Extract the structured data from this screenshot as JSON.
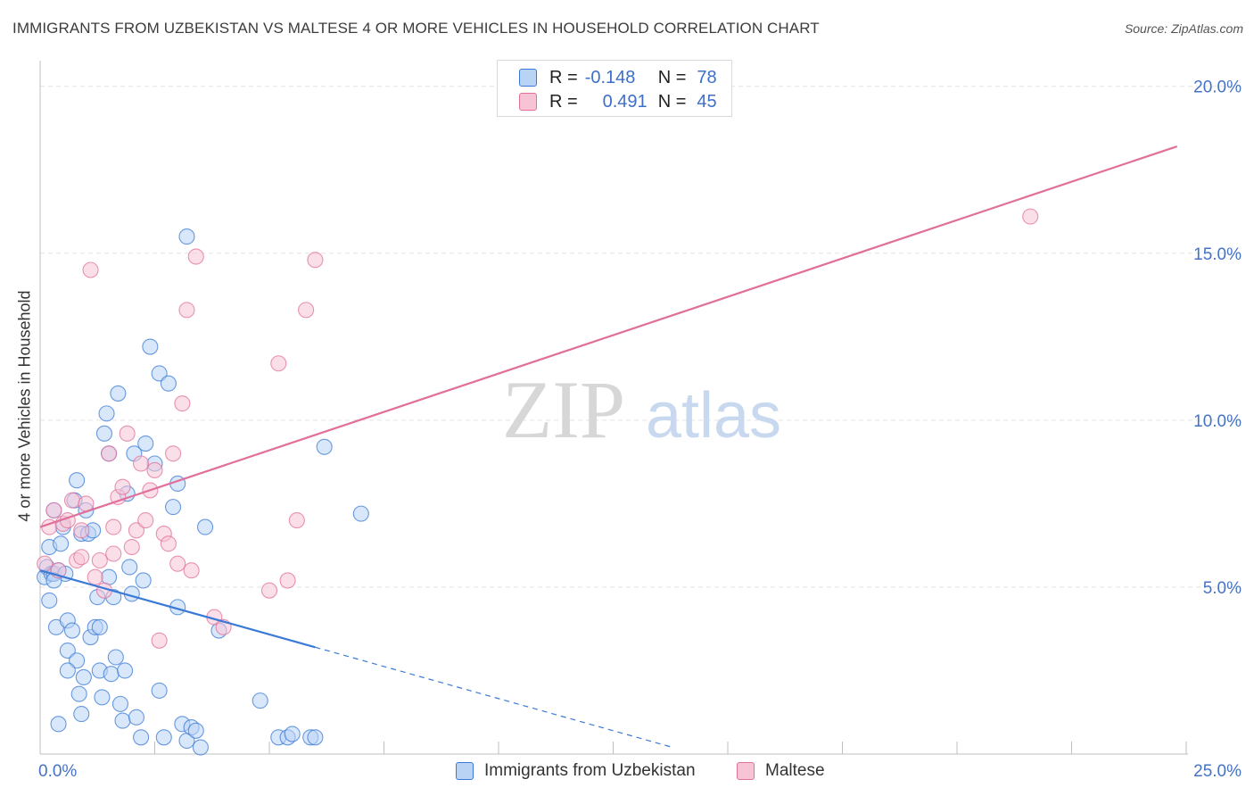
{
  "title": "IMMIGRANTS FROM UZBEKISTAN VS MALTESE 4 OR MORE VEHICLES IN HOUSEHOLD CORRELATION CHART",
  "source": "Source: ZipAtlas.com",
  "watermark": {
    "zip": "ZIP",
    "atlas": "atlas"
  },
  "colors": {
    "blue": "#3a7ad6",
    "blue_fill": "#b9d3f5",
    "pink": "#e0709a",
    "pink_fill": "#f7c4d5",
    "axis_label": "#4472c4"
  },
  "legend": {
    "rows": [
      {
        "r_label": "R =",
        "r_value": "-0.148",
        "n_label": "N =",
        "n_value": "78"
      },
      {
        "r_label": "R =",
        "r_value": "0.491",
        "n_label": "N =",
        "n_value": "45"
      }
    ]
  },
  "bottom_legend": {
    "series1": "Immigrants from Uzbekistan",
    "series2": "Maltese"
  },
  "chart_data": {
    "type": "scatter",
    "xlabel": "",
    "ylabel": "4 or more Vehicles in Household",
    "xlim": [
      0,
      25
    ],
    "ylim": [
      0,
      20.5
    ],
    "x_tick_labels": [
      "0.0%",
      "25.0%"
    ],
    "y_tick_labels": [
      "5.0%",
      "10.0%",
      "15.0%",
      "20.0%"
    ],
    "y_ticks": [
      5,
      10,
      15,
      20
    ],
    "series": [
      {
        "name": "Immigrants from Uzbekistan",
        "color": "#3a7ad6",
        "trend": {
          "x": [
            0.0,
            6.0
          ],
          "y": [
            5.5,
            3.2
          ],
          "dash_x": [
            6.0,
            13.8
          ],
          "dash_y": [
            3.2,
            0.2
          ]
        },
        "points": [
          [
            0.1,
            5.3
          ],
          [
            0.15,
            5.6
          ],
          [
            0.2,
            6.2
          ],
          [
            0.25,
            5.4
          ],
          [
            0.3,
            7.3
          ],
          [
            0.3,
            5.4
          ],
          [
            0.35,
            3.8
          ],
          [
            0.4,
            5.5
          ],
          [
            0.45,
            6.3
          ],
          [
            0.5,
            6.8
          ],
          [
            0.55,
            5.4
          ],
          [
            0.6,
            4.0
          ],
          [
            0.6,
            3.1
          ],
          [
            0.7,
            3.7
          ],
          [
            0.75,
            7.6
          ],
          [
            0.8,
            8.2
          ],
          [
            0.8,
            2.8
          ],
          [
            0.85,
            1.8
          ],
          [
            0.9,
            6.6
          ],
          [
            0.95,
            2.3
          ],
          [
            1.0,
            7.3
          ],
          [
            1.05,
            6.6
          ],
          [
            1.1,
            3.5
          ],
          [
            1.15,
            6.7
          ],
          [
            1.2,
            3.8
          ],
          [
            1.25,
            4.7
          ],
          [
            1.3,
            2.5
          ],
          [
            1.35,
            1.7
          ],
          [
            1.4,
            9.6
          ],
          [
            1.45,
            10.2
          ],
          [
            1.5,
            9.0
          ],
          [
            1.5,
            5.3
          ],
          [
            1.55,
            2.4
          ],
          [
            1.6,
            4.7
          ],
          [
            1.65,
            2.9
          ],
          [
            1.7,
            10.8
          ],
          [
            1.75,
            1.5
          ],
          [
            1.8,
            1.0
          ],
          [
            1.85,
            2.5
          ],
          [
            1.9,
            7.8
          ],
          [
            1.95,
            5.6
          ],
          [
            2.0,
            4.8
          ],
          [
            2.05,
            9.0
          ],
          [
            2.1,
            1.1
          ],
          [
            2.2,
            0.5
          ],
          [
            2.25,
            5.2
          ],
          [
            2.3,
            9.3
          ],
          [
            2.4,
            12.2
          ],
          [
            2.5,
            8.7
          ],
          [
            2.6,
            11.4
          ],
          [
            2.7,
            0.5
          ],
          [
            2.8,
            11.1
          ],
          [
            2.9,
            7.4
          ],
          [
            3.0,
            4.4
          ],
          [
            3.1,
            0.9
          ],
          [
            3.2,
            0.4
          ],
          [
            3.3,
            0.8
          ],
          [
            3.4,
            0.7
          ],
          [
            3.5,
            0.2
          ],
          [
            3.6,
            6.8
          ],
          [
            3.0,
            8.1
          ],
          [
            3.2,
            15.5
          ],
          [
            3.9,
            3.7
          ],
          [
            4.8,
            1.6
          ],
          [
            5.2,
            0.5
          ],
          [
            5.4,
            0.5
          ],
          [
            5.5,
            0.6
          ],
          [
            5.9,
            0.5
          ],
          [
            6.0,
            0.5
          ],
          [
            6.2,
            9.2
          ],
          [
            7.0,
            7.2
          ],
          [
            0.4,
            0.9
          ],
          [
            0.2,
            4.6
          ],
          [
            0.6,
            2.5
          ],
          [
            0.9,
            1.2
          ],
          [
            2.6,
            1.9
          ],
          [
            0.3,
            5.2
          ],
          [
            1.3,
            3.8
          ]
        ]
      },
      {
        "name": "Maltese",
        "color": "#e0709a",
        "trend": {
          "x": [
            0.0,
            24.8
          ],
          "y": [
            6.8,
            18.2
          ]
        },
        "points": [
          [
            0.1,
            5.7
          ],
          [
            0.2,
            6.8
          ],
          [
            0.3,
            7.3
          ],
          [
            0.4,
            5.5
          ],
          [
            0.5,
            6.9
          ],
          [
            0.6,
            7.0
          ],
          [
            0.7,
            7.6
          ],
          [
            0.8,
            5.8
          ],
          [
            0.9,
            6.7
          ],
          [
            1.0,
            7.5
          ],
          [
            1.1,
            14.5
          ],
          [
            1.2,
            5.3
          ],
          [
            1.3,
            5.8
          ],
          [
            1.4,
            4.9
          ],
          [
            1.5,
            9.0
          ],
          [
            1.6,
            6.8
          ],
          [
            1.7,
            7.7
          ],
          [
            1.8,
            8.0
          ],
          [
            1.9,
            9.6
          ],
          [
            2.0,
            6.2
          ],
          [
            2.1,
            6.7
          ],
          [
            2.2,
            8.7
          ],
          [
            2.3,
            7.0
          ],
          [
            2.4,
            7.9
          ],
          [
            2.5,
            8.5
          ],
          [
            2.6,
            3.4
          ],
          [
            2.7,
            6.6
          ],
          [
            2.8,
            6.3
          ],
          [
            2.9,
            9.0
          ],
          [
            3.0,
            5.7
          ],
          [
            3.1,
            10.5
          ],
          [
            3.2,
            13.3
          ],
          [
            3.3,
            5.5
          ],
          [
            3.4,
            14.9
          ],
          [
            3.8,
            4.1
          ],
          [
            4.0,
            3.8
          ],
          [
            5.0,
            4.9
          ],
          [
            5.2,
            11.7
          ],
          [
            5.4,
            5.2
          ],
          [
            5.6,
            7.0
          ],
          [
            5.8,
            13.3
          ],
          [
            6.0,
            14.8
          ],
          [
            21.6,
            16.1
          ],
          [
            0.9,
            5.9
          ],
          [
            1.6,
            6.0
          ]
        ]
      }
    ]
  }
}
